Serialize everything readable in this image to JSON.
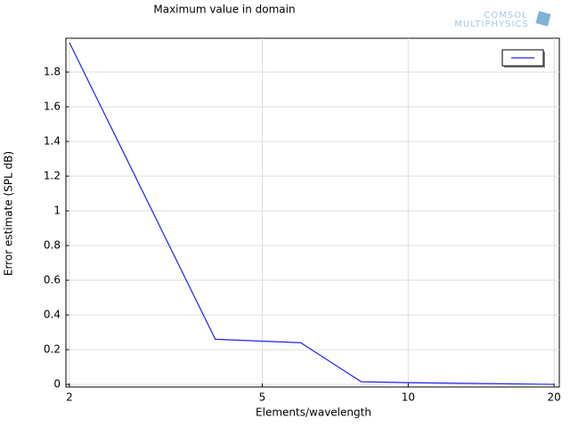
{
  "chart_data": {
    "type": "line",
    "title": "Maximum value in domain",
    "xlabel": "Elements/wavelength",
    "ylabel": "Error estimate (SPL dB)",
    "x": [
      2,
      4,
      6,
      8,
      10,
      20
    ],
    "series": [
      {
        "color": "#2020ee",
        "values": [
          1.97,
          0.26,
          0.24,
          0.015,
          0.01,
          0.0
        ]
      }
    ],
    "xscale": "log",
    "xlim": [
      1.967,
      20.5
    ],
    "xticks": [
      2,
      5,
      10,
      20
    ],
    "ylim": [
      -0.015,
      1.995
    ],
    "yticks": [
      0,
      0.2,
      0.4,
      0.6,
      0.8,
      1,
      1.2,
      1.4,
      1.6,
      1.8
    ],
    "grid": true,
    "legend": "upper right",
    "logo": [
      "COMSOL",
      "MULTIPHYSICS"
    ]
  }
}
